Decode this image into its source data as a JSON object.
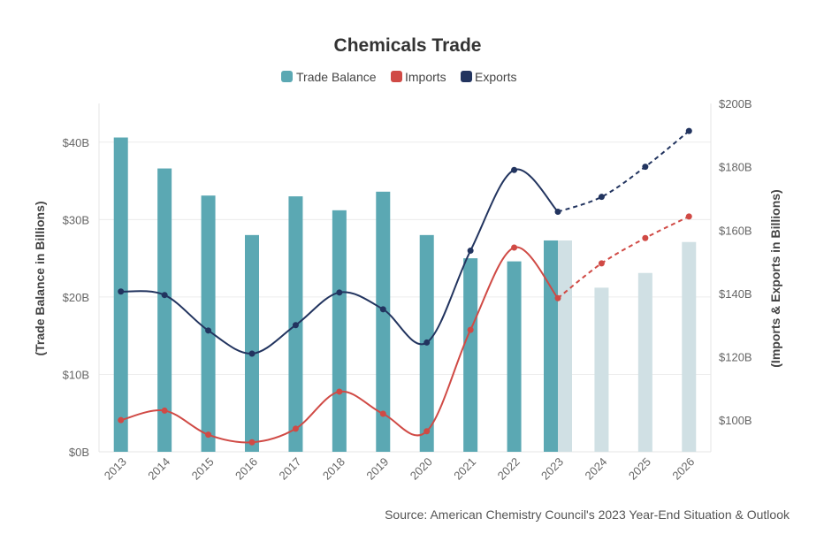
{
  "chart_data": {
    "type": "bar",
    "title": "Chemicals Trade",
    "categories": [
      "2013",
      "2014",
      "2015",
      "2016",
      "2017",
      "2018",
      "2019",
      "2020",
      "2021",
      "2022",
      "2023",
      "2024",
      "2025",
      "2026"
    ],
    "series": [
      {
        "name": "Trade Balance",
        "type": "bar",
        "axis": "left",
        "color": "#5ba8b3",
        "projection_color": "#d0e0e4",
        "values": [
          40.6,
          36.6,
          33.1,
          28.0,
          33.0,
          31.2,
          33.6,
          28.0,
          25.0,
          24.6,
          27.3,
          21.2,
          23.1,
          27.1
        ]
      },
      {
        "name": "Imports",
        "type": "line",
        "axis": "right",
        "color": "#d04a45",
        "values": [
          100.0,
          103.0,
          95.4,
          93.0,
          97.3,
          109.0,
          102.0,
          96.5,
          128.5,
          154.5,
          138.5,
          149.5,
          157.5,
          164.3
        ]
      },
      {
        "name": "Exports",
        "type": "line",
        "axis": "right",
        "color": "#22345f",
        "values": [
          140.6,
          139.5,
          128.3,
          121.0,
          130.0,
          140.3,
          135.0,
          124.5,
          153.5,
          179.0,
          165.8,
          170.5,
          180.0,
          191.3
        ]
      }
    ],
    "projection_start_index": 11,
    "yaxis_left": {
      "label": "(Trade Balance in Billions)",
      "min": 0,
      "max": 45,
      "ticks": [
        0,
        10,
        20,
        30,
        40
      ],
      "tick_labels": [
        "$0B",
        "$10B",
        "$20B",
        "$30B",
        "$40B"
      ]
    },
    "yaxis_right": {
      "label": "(Imports & Exports in Billions)",
      "min": 90,
      "max": 200,
      "ticks": [
        100,
        120,
        140,
        160,
        180,
        200
      ],
      "tick_labels": [
        "$100B",
        "$120B",
        "$140B",
        "$160B",
        "$180B",
        "$200B"
      ]
    },
    "legend_position": "top",
    "grid": true,
    "source": "Source: American Chemistry Council's 2023 Year-End Situation & Outlook"
  }
}
